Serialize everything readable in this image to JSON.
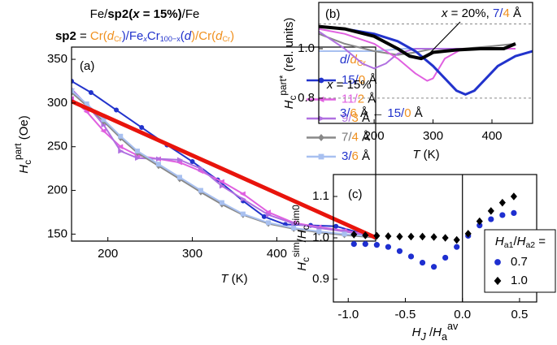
{
  "chart_data": [
    {
      "type": "line",
      "label": "(a)",
      "title": [
        {
          "text": "Fe/"
        },
        {
          "text": "sp2(",
          "style": "b"
        },
        {
          "text": "x",
          "style": "bi"
        },
        {
          "text": " = 15%)",
          "style": "b"
        },
        {
          "text": "/Fe"
        }
      ],
      "subtitle": [
        {
          "text": "sp2",
          "style": "b"
        },
        {
          "text": " = "
        },
        {
          "text": "Cr(",
          "color": "#f0901e"
        },
        {
          "text": "d",
          "style": "i",
          "color": "#f0901e"
        },
        {
          "text": "Cr",
          "style": "_",
          "color": "#f0901e"
        },
        {
          "text": ")/Fe",
          "color": "#2233cc"
        },
        {
          "text": "x",
          "style": "i_",
          "color": "#2233cc"
        },
        {
          "text": "Cr",
          "color": "#2233cc"
        },
        {
          "text": "100−x",
          "style": "_",
          "color": "#2233cc"
        },
        {
          "text": "(",
          "color": "#2233cc"
        },
        {
          "text": "d",
          "style": "i",
          "color": "#2233cc"
        },
        {
          "text": ")/Cr(",
          "color": "#f0901e"
        },
        {
          "text": "d",
          "style": "i",
          "color": "#f0901e"
        },
        {
          "text": "Cr",
          "style": "_",
          "color": "#f0901e"
        },
        {
          "text": ")",
          "color": "#f0901e"
        }
      ],
      "xlabel": [
        {
          "text": "T",
          "style": "i"
        },
        {
          "text": " (K)"
        }
      ],
      "ylabel": [
        {
          "text": "H",
          "style": "i"
        },
        {
          "text": "c",
          "style": "_"
        },
        {
          "text": "part",
          "style": "^"
        },
        {
          "text": " (Oe)"
        }
      ],
      "legend_title": [
        {
          "text": "d",
          "style": "i",
          "color": "#2233cc"
        },
        {
          "text": "/",
          "color": "#2233cc"
        },
        {
          "text": "d",
          "style": "i",
          "color": "#f0901e"
        },
        {
          "text": "Cr",
          "style": "_",
          "color": "#f0901e"
        }
      ],
      "xlim": [
        157,
        517
      ],
      "xticks": [
        200,
        300,
        400
      ],
      "ylim": [
        142,
        364
      ],
      "yticks": [
        150,
        200,
        250,
        300,
        350
      ],
      "series": [
        {
          "name": [
            {
              "text": "15/",
              "color": "#2233cc"
            },
            {
              "text": "0",
              "color": "#f0901e"
            },
            {
              "text": " Å"
            }
          ],
          "color": "#2233cc",
          "marker": "circle",
          "x": [
            157,
            180,
            210,
            240,
            270,
            300,
            330,
            360,
            385,
            410,
            440,
            470,
            500,
            517
          ],
          "values": [
            325,
            312,
            292,
            272,
            252,
            233,
            212,
            188,
            170,
            161,
            160,
            159,
            151,
            147
          ]
        },
        {
          "name": [
            {
              "text": "11/",
              "color": "#e060e0"
            },
            {
              "text": "2",
              "color": "#f0901e"
            },
            {
              "text": " Å"
            }
          ],
          "color": "#e060e0",
          "marker": "tri-l",
          "x": [
            157,
            175,
            195,
            215,
            235,
            260,
            285,
            310,
            335,
            360,
            390,
            420,
            450,
            480,
            517
          ],
          "values": [
            305,
            290,
            268,
            250,
            240,
            236,
            232,
            222,
            210,
            196,
            175,
            163,
            158,
            154,
            148
          ]
        },
        {
          "name": [
            {
              "text": "9/",
              "color": "#b070e0"
            },
            {
              "text": "3",
              "color": "#f0901e"
            },
            {
              "text": " Å"
            }
          ],
          "color": "#b070e0",
          "marker": "tri-r",
          "x": [
            157,
            175,
            195,
            215,
            235,
            260,
            285,
            310,
            335,
            360,
            390,
            420,
            450,
            480,
            517
          ],
          "values": [
            316,
            298,
            275,
            245,
            237,
            236,
            235,
            225,
            205,
            190,
            172,
            162,
            157,
            153,
            147
          ]
        },
        {
          "name": [
            {
              "text": "7/",
              "color": "#777777"
            },
            {
              "text": "4",
              "color": "#f0901e"
            },
            {
              "text": " Å"
            }
          ],
          "color": "#888888",
          "marker": "diamond",
          "x": [
            157,
            175,
            195,
            215,
            235,
            260,
            285,
            310,
            335,
            360,
            390,
            420,
            450,
            480,
            517
          ],
          "values": [
            312,
            297,
            279,
            260,
            243,
            228,
            213,
            198,
            184,
            172,
            162,
            156,
            152,
            149,
            146
          ]
        },
        {
          "name": [
            {
              "text": "3/",
              "color": "#2233cc"
            },
            {
              "text": "6",
              "color": "#f0901e"
            },
            {
              "text": " Å"
            }
          ],
          "color": "#a8c0f0",
          "marker": "square",
          "x": [
            157,
            175,
            195,
            215,
            235,
            260,
            285,
            310,
            335,
            360,
            390,
            420,
            450,
            480,
            517
          ],
          "values": [
            314,
            299,
            281,
            262,
            245,
            230,
            215,
            200,
            186,
            173,
            163,
            157,
            153,
            150,
            147
          ]
        },
        {
          "color": "#e8140c",
          "x": [
            157,
            517
          ],
          "values": [
            302,
            146
          ]
        }
      ]
    },
    {
      "type": "line",
      "label": "(b)",
      "xlabel": [
        {
          "text": "T",
          "style": "i"
        },
        {
          "text": " (K)"
        }
      ],
      "ylabel": [
        {
          "text": "H",
          "style": "i"
        },
        {
          "text": "c",
          "style": "_"
        },
        {
          "text": "part*",
          "style": "^"
        },
        {
          "text": " (rel. units)"
        }
      ],
      "xlim": [
        106,
        469
      ],
      "xticks": [
        200,
        300,
        400
      ],
      "ylim": [
        0.698,
        1.187
      ],
      "yticks": [
        0.8,
        {
          "value": 1,
          "label": "1.0"
        }
      ],
      "hlines": [
        0.8,
        1.1
      ],
      "annotations": [
        [
          {
            "text": "x",
            "style": "i"
          },
          {
            "text": " = 20%, "
          },
          {
            "text": "7/",
            "color": "#2233cc"
          },
          {
            "text": "4",
            "color": "#f0901e"
          },
          {
            "text": " Å"
          }
        ],
        [
          {
            "text": "x",
            "style": "i"
          },
          {
            "text": " = 15%"
          }
        ],
        [
          {
            "text": "3/",
            "color": "#2233cc"
          },
          {
            "text": "6",
            "color": "#f0901e"
          },
          {
            "text": " Å  ←  "
          },
          {
            "text": "15/",
            "color": "#2233cc"
          },
          {
            "text": "0",
            "color": "#f0901e"
          },
          {
            "text": " Å"
          }
        ]
      ],
      "series": [
        {
          "color": "#a8c0f0",
          "x": [
            106,
            150,
            200,
            250,
            300,
            350,
            400,
            440
          ],
          "values": [
            0.99,
            0.99,
            0.99,
            1.0,
            1.0,
            1.0,
            1.0,
            1.0
          ]
        },
        {
          "color": "#888888",
          "x": [
            106,
            150,
            200,
            240,
            270,
            300,
            350,
            400,
            440
          ],
          "values": [
            1.06,
            1.02,
            0.99,
            0.975,
            0.985,
            1.0,
            1.0,
            1.01,
            1.02
          ]
        },
        {
          "color": "#b070e0",
          "x": [
            106,
            150,
            180,
            200,
            220,
            240,
            270,
            300,
            350,
            400,
            440
          ],
          "values": [
            1.07,
            1.0,
            0.94,
            0.92,
            0.94,
            0.98,
            1.0,
            1.0,
            1.0,
            1.0,
            1.0
          ]
        },
        {
          "color": "#e060e0",
          "x": [
            106,
            150,
            200,
            240,
            270,
            290,
            300,
            320,
            350,
            400,
            440
          ],
          "values": [
            1.08,
            1.06,
            1.02,
            0.96,
            0.9,
            0.87,
            0.88,
            0.96,
            1.0,
            1.0,
            1.0
          ]
        },
        {
          "color": "#2233cc",
          "x": [
            106,
            150,
            200,
            240,
            270,
            300,
            320,
            340,
            355,
            370,
            390,
            410,
            440,
            469
          ],
          "values": [
            1.09,
            1.08,
            1.06,
            1.03,
            0.99,
            0.93,
            0.88,
            0.83,
            0.815,
            0.83,
            0.88,
            0.93,
            0.97,
            0.99
          ]
        },
        {
          "color": "#000000",
          "x": [
            106,
            150,
            200,
            240,
            260,
            280,
            300,
            340,
            380,
            420,
            440
          ],
          "values": [
            1.09,
            1.08,
            1.05,
            1.0,
            0.97,
            0.96,
            0.985,
            0.995,
            1.0,
            1.0,
            1.02
          ]
        }
      ]
    },
    {
      "type": "scatter",
      "label": "(c)",
      "xlabel": [
        {
          "text": "H",
          "style": "i"
        },
        {
          "text": "J",
          "style": "i_"
        },
        {
          "text": " /"
        },
        {
          "text": "H",
          "style": "i"
        },
        {
          "text": "a",
          "style": "_"
        },
        {
          "text": "av",
          "style": "^"
        }
      ],
      "ylabel": [
        {
          "text": "H",
          "style": "i"
        },
        {
          "text": "c",
          "style": "_"
        },
        {
          "text": "sim",
          "style": "^"
        },
        {
          "text": "/"
        },
        {
          "text": "H",
          "style": "i"
        },
        {
          "text": "c",
          "style": "_"
        },
        {
          "text": "sim0",
          "style": "^"
        }
      ],
      "legend_title": [
        {
          "text": "H",
          "style": "i"
        },
        {
          "text": "a1",
          "style": "_"
        },
        {
          "text": "/"
        },
        {
          "text": "H",
          "style": "i"
        },
        {
          "text": "a2",
          "style": "_"
        },
        {
          "text": " ="
        }
      ],
      "xlim": [
        -1.13,
        0.65
      ],
      "xticks": [
        {
          "value": -1,
          "label": "-1.0"
        },
        -0.5,
        {
          "value": 0,
          "label": "0.0"
        },
        0.5
      ],
      "ylim": [
        0.845,
        1.153
      ],
      "yticks": [
        0.9,
        {
          "value": 1,
          "label": "1.0"
        },
        1.1
      ],
      "vlines": [
        0
      ],
      "series": [
        {
          "name": "0.7",
          "color": "#1e2fd0",
          "marker": "circle",
          "x": [
            -0.95,
            -0.85,
            -0.75,
            -0.65,
            -0.55,
            -0.45,
            -0.35,
            -0.25,
            -0.15,
            -0.05,
            0.05,
            0.15,
            0.25,
            0.35,
            0.45
          ],
          "values": [
            0.985,
            0.985,
            0.983,
            0.978,
            0.968,
            0.955,
            0.94,
            0.93,
            0.952,
            0.978,
            1.005,
            1.03,
            1.045,
            1.055,
            1.06
          ]
        },
        {
          "name": "1.0",
          "color": "#000000",
          "marker": "diamond",
          "x": [
            -0.95,
            -0.85,
            -0.75,
            -0.65,
            -0.55,
            -0.45,
            -0.35,
            -0.25,
            -0.15,
            -0.05,
            0.05,
            0.15,
            0.25,
            0.35,
            0.45
          ],
          "values": [
            1.008,
            1.006,
            1.005,
            1.004,
            1.003,
            1.003,
            1.003,
            1.002,
            1.0,
            0.995,
            1.01,
            1.04,
            1.065,
            1.085,
            1.1
          ]
        }
      ]
    }
  ]
}
